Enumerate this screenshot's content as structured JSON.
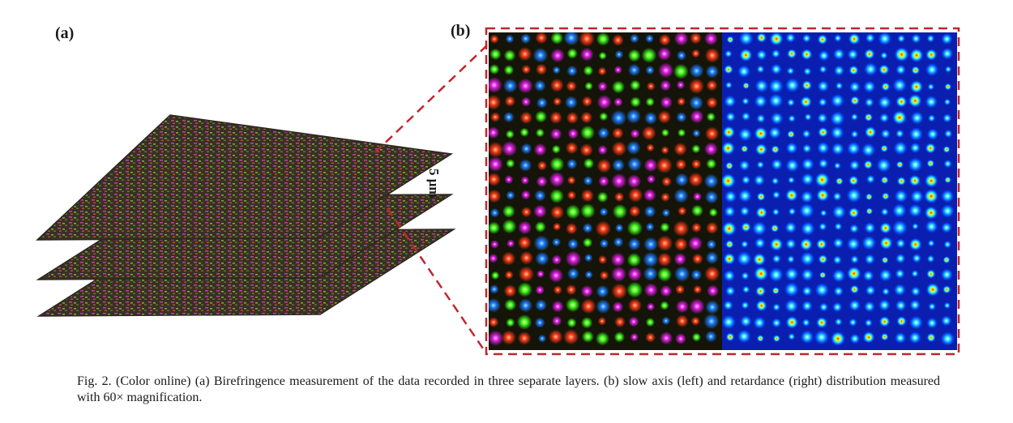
{
  "figure": {
    "panel_a_label": "(a)",
    "panel_b_label": "(b)",
    "scale_label": "5 μm",
    "caption": "Fig. 2. (Color online) (a) Birefringence measurement of the data recorded in three separate layers. (b) slow axis (left) and retardance (right) distribution measured with 60× magnification."
  },
  "colors": {
    "dash_box": "#c0272d",
    "layer_base": "#3b2f24",
    "slow_axis_bg": "#141408",
    "retardance_bg": "#0a1fb0"
  }
}
